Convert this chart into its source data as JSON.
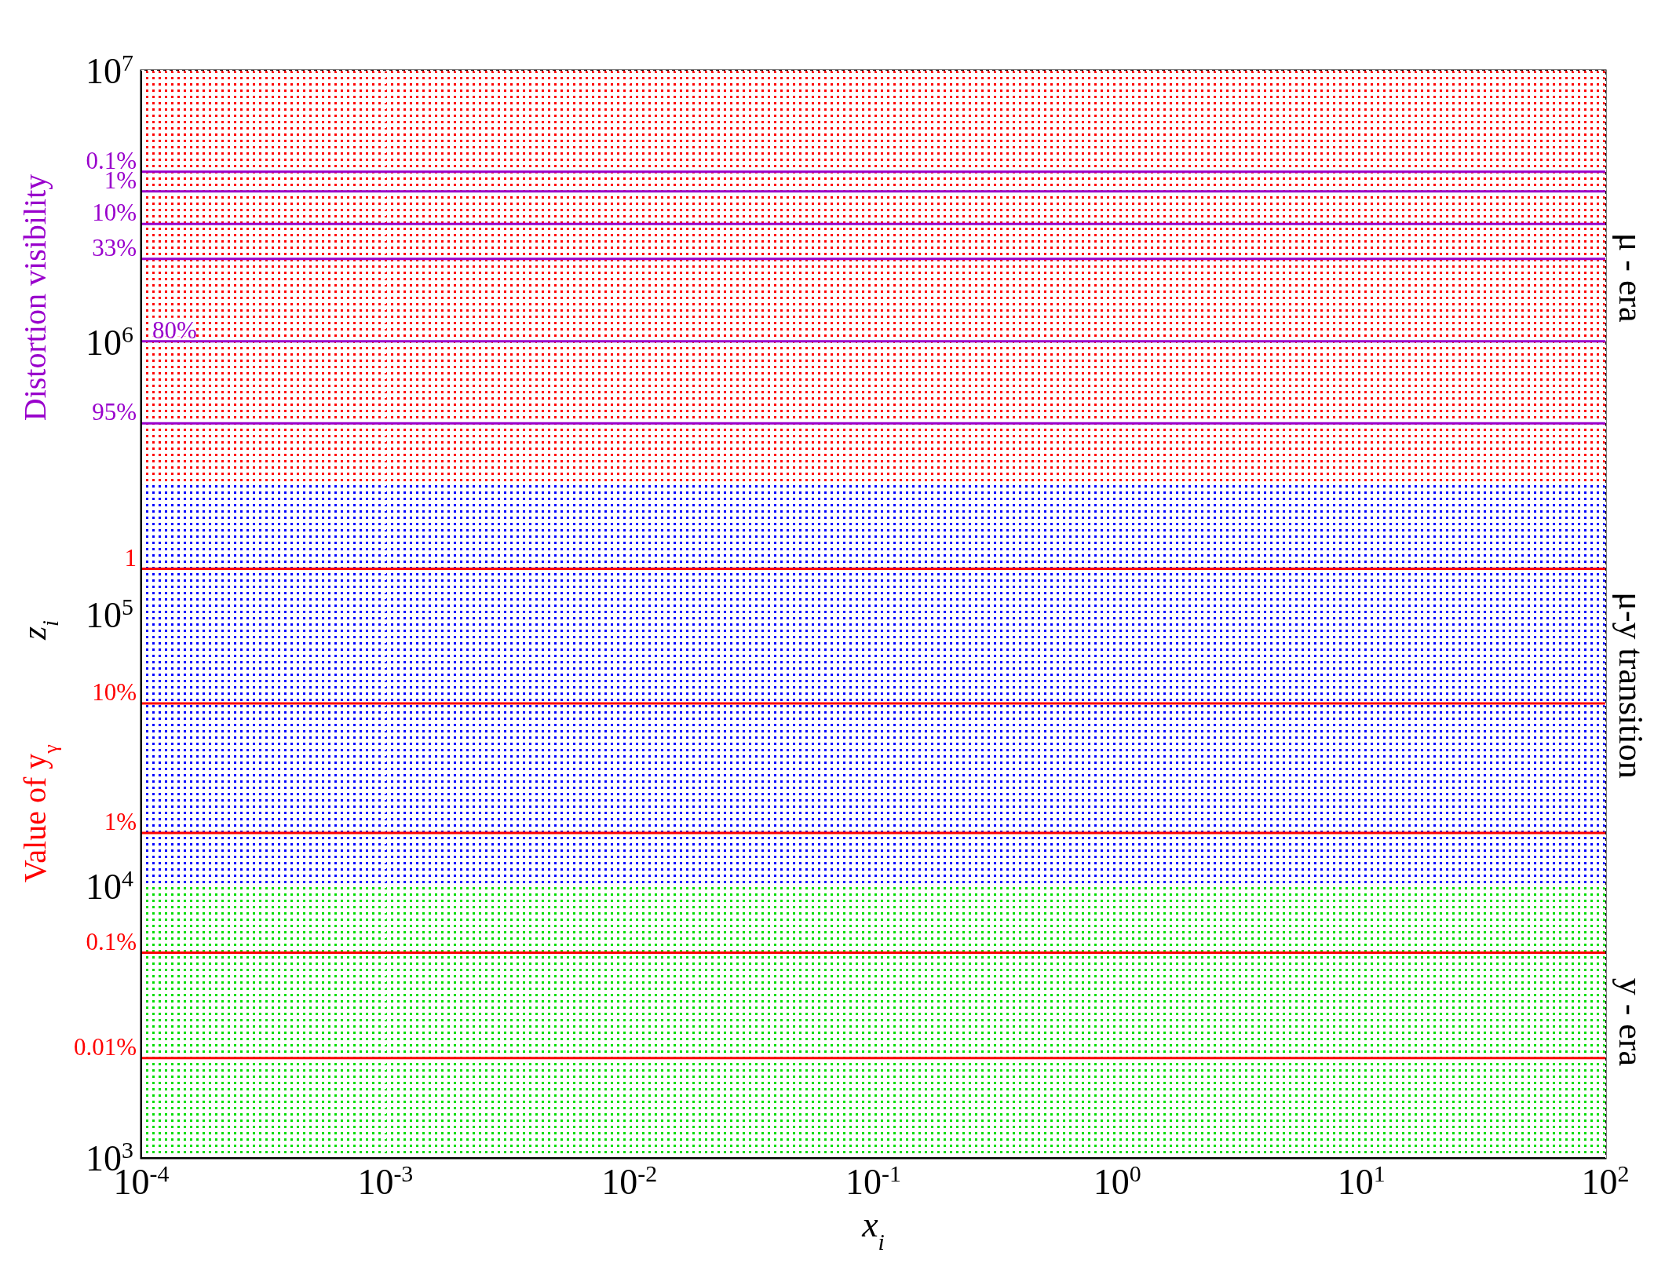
{
  "chart_data": {
    "type": "line",
    "xlabel": "x$_{i}$",
    "ylabel": "z$_{i}$",
    "log": "xy",
    "grid": true,
    "marker": "none",
    "legend": false,
    "xlim": [
      0.0001,
      100
    ],
    "ylim": [
      1000,
      10000000
    ],
    "xticks": [
      {
        "value": 0.0001,
        "label": "10$^{-4}$"
      },
      {
        "value": 0.001,
        "label": "10$^{-3}$"
      },
      {
        "value": 0.01,
        "label": "10$^{-2}$"
      },
      {
        "value": 0.1,
        "label": "10$^{-1}$"
      },
      {
        "value": 1,
        "label": "10$^{0}$"
      },
      {
        "value": 10,
        "label": "10$^{1}$"
      },
      {
        "value": 100,
        "label": "10$^{2}$"
      }
    ],
    "yticks": [
      {
        "value": 1000,
        "label": "10$^{3}$"
      },
      {
        "value": 10000,
        "label": "10$^{4}$"
      },
      {
        "value": 100000,
        "label": "10$^{5}$"
      },
      {
        "value": 1000000,
        "label": "10$^{6}$"
      },
      {
        "value": 10000000,
        "label": "10$^{7}$"
      }
    ],
    "bands": [
      {
        "axis": "y",
        "from": 300000,
        "to": 10000000,
        "label": "μ - era",
        "color": "#ff0000"
      },
      {
        "axis": "y",
        "from": 10000,
        "to": 300000,
        "label": "μ-y transition",
        "color": "#0000ff"
      },
      {
        "axis": "y",
        "from": 1000,
        "to": 10000,
        "label": "y - era",
        "color": "#00dd00"
      }
    ],
    "x": [
      0.0001,
      100
    ],
    "series": [
      {
        "name": "0.1%",
        "color": "#9900cc",
        "values": [
          4250000,
          4250000
        ]
      },
      {
        "name": "1%",
        "color": "#9900cc",
        "values": [
          3600000,
          3600000
        ]
      },
      {
        "name": "10%",
        "color": "#9900cc",
        "values": [
          2730000,
          2730000
        ]
      },
      {
        "name": "33%",
        "color": "#9900cc",
        "values": [
          2030000,
          2030000
        ]
      },
      {
        "name": "80%",
        "color": "#9900cc",
        "values": [
          1010000,
          1010000
        ]
      },
      {
        "name": "95%",
        "color": "#9900cc",
        "values": [
          504000,
          504000
        ]
      },
      {
        "name": "1",
        "color": "#ff0000",
        "values": [
          147000,
          147000
        ]
      },
      {
        "name": "10%",
        "color": "#ff0000",
        "values": [
          47000,
          47000
        ]
      },
      {
        "name": "1%",
        "color": "#ff0000",
        "values": [
          15700,
          15700
        ]
      },
      {
        "name": "0.1%",
        "color": "#ff0000",
        "values": [
          5690,
          5690
        ]
      },
      {
        "name": "0.01%",
        "color": "#ff0000",
        "values": [
          2330,
          2330
        ]
      }
    ],
    "annotations": [
      "Distortion visibility",
      "Value of y$_{γ}$"
    ]
  }
}
